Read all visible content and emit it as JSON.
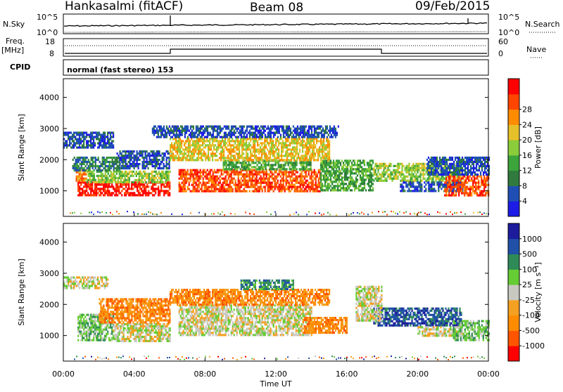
{
  "header": {
    "station": "Hankasalmi (fitACF)",
    "beam": "Beam 08",
    "date": "09/Feb/2015"
  },
  "strips": {
    "noise": {
      "left_label": "N.Sky",
      "right_label": "N.Search",
      "left_ticks": [
        "10^5",
        "10^0"
      ],
      "right_ticks": [
        "10^5",
        "10^0"
      ]
    },
    "freq": {
      "left_label_1": "Freq.",
      "left_label_2": "[MHz]",
      "left_ticks": [
        "18",
        "8"
      ],
      "right_label": "Nave",
      "right_ticks": [
        "60",
        "0"
      ]
    },
    "cpid": {
      "left_label": "CPID",
      "mode_text": "normal (fast stereo) 153"
    }
  },
  "colors": {
    "power": [
      "#1c1ce6",
      "#1f4fb5",
      "#2f7a3c",
      "#3ba43b",
      "#8bcc3a",
      "#e6c02a",
      "#ff8c00",
      "#ff4500",
      "#ff0000"
    ],
    "velocity": [
      "#ff0000",
      "#ff5500",
      "#ff8c00",
      "#f4a020",
      "#c8c8c0",
      "#66cc33",
      "#2e8b57",
      "#2050a8",
      "#1c1c9c"
    ]
  },
  "chart_data": [
    {
      "type": "heatmap",
      "panel": "power",
      "ylabel": "Slant Range [km]",
      "xlabel": "",
      "ylim": [
        180,
        4600
      ],
      "xlim": [
        0,
        24
      ],
      "yticks": [
        1000,
        2000,
        3000,
        4000
      ],
      "xticks": [
        "00:00",
        "04:00",
        "08:00",
        "12:00",
        "16:00",
        "20:00",
        "00:00"
      ],
      "colorbar": {
        "label": "Power [dB]",
        "ticks": [
          "4",
          "8",
          "12",
          "16",
          "20",
          "24",
          "28"
        ]
      },
      "regions": [
        {
          "t": [
            0.8,
            6.0
          ],
          "r": [
            850,
            1300
          ],
          "level": 8
        },
        {
          "t": [
            0.7,
            1.3
          ],
          "r": [
            1300,
            1700
          ],
          "level": 6
        },
        {
          "t": [
            1.3,
            6.0
          ],
          "r": [
            1300,
            1650
          ],
          "level": 4
        },
        {
          "t": [
            0.5,
            3.2
          ],
          "r": [
            1650,
            2100
          ],
          "level": 2
        },
        {
          "t": [
            0.0,
            2.8
          ],
          "r": [
            2400,
            2900
          ],
          "level": 1
        },
        {
          "t": [
            3.0,
            6.0
          ],
          "r": [
            1700,
            2300
          ],
          "level": 1
        },
        {
          "t": [
            6.5,
            14.5
          ],
          "r": [
            1000,
            1700
          ],
          "level": 7
        },
        {
          "t": [
            9.0,
            14.0
          ],
          "r": [
            1700,
            2000
          ],
          "level": 3
        },
        {
          "t": [
            6.0,
            15.0
          ],
          "r": [
            2000,
            2700
          ],
          "level": 5
        },
        {
          "t": [
            5.0,
            15.5
          ],
          "r": [
            2700,
            3100
          ],
          "level": 1
        },
        {
          "t": [
            14.5,
            17.5
          ],
          "r": [
            1000,
            2000
          ],
          "level": 3
        },
        {
          "t": [
            17.5,
            22.5
          ],
          "r": [
            1300,
            1900
          ],
          "level": 4
        },
        {
          "t": [
            19.0,
            22.5
          ],
          "r": [
            1000,
            1300
          ],
          "level": 1
        },
        {
          "t": [
            21.5,
            24.0
          ],
          "r": [
            850,
            1500
          ],
          "level": 7
        },
        {
          "t": [
            20.5,
            24.0
          ],
          "r": [
            1500,
            2100
          ],
          "level": 1
        }
      ]
    },
    {
      "type": "heatmap",
      "panel": "velocity",
      "ylabel": "Slant Range [km]",
      "xlabel": "Time UT",
      "ylim": [
        180,
        4600
      ],
      "xlim": [
        0,
        24
      ],
      "yticks": [
        1000,
        2000,
        3000,
        4000
      ],
      "xticks": [
        "00:00",
        "04:00",
        "08:00",
        "12:00",
        "16:00",
        "20:00",
        "00:00"
      ],
      "colorbar": {
        "label": "Velocity [m s⁻¹]",
        "ticks": [
          "1000",
          "500",
          "100",
          "25",
          "-25",
          "-100",
          "-500",
          "-1000"
        ]
      },
      "regions": [
        {
          "t": [
            0.8,
            2.8
          ],
          "r": [
            850,
            1700
          ],
          "level": 5
        },
        {
          "t": [
            2.8,
            6.0
          ],
          "r": [
            850,
            1400
          ],
          "level": 4
        },
        {
          "t": [
            2.0,
            6.0
          ],
          "r": [
            1400,
            2200
          ],
          "level": 2
        },
        {
          "t": [
            0.0,
            2.5
          ],
          "r": [
            2500,
            2900
          ],
          "level": 4
        },
        {
          "t": [
            6.5,
            14.0
          ],
          "r": [
            1000,
            2000
          ],
          "level": 4
        },
        {
          "t": [
            6.0,
            15.0
          ],
          "r": [
            2000,
            2500
          ],
          "level": 2
        },
        {
          "t": [
            10.0,
            13.0
          ],
          "r": [
            2500,
            2800
          ],
          "level": 6
        },
        {
          "t": [
            13.5,
            16.0
          ],
          "r": [
            1100,
            1600
          ],
          "level": 2
        },
        {
          "t": [
            17.5,
            22.5
          ],
          "r": [
            1300,
            1900
          ],
          "level": 7
        },
        {
          "t": [
            20.0,
            22.5
          ],
          "r": [
            1000,
            1300
          ],
          "level": 4
        },
        {
          "t": [
            22.0,
            24.0
          ],
          "r": [
            850,
            1500
          ],
          "level": 5
        },
        {
          "t": [
            16.5,
            18.0
          ],
          "r": [
            1500,
            2600
          ],
          "level": 4
        }
      ]
    }
  ]
}
